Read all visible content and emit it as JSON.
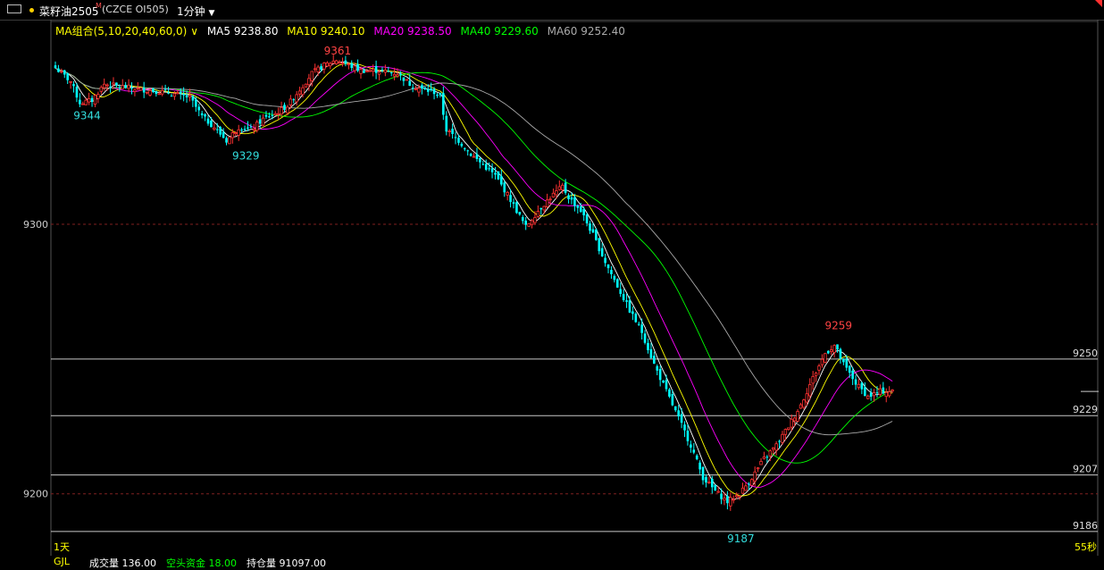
{
  "header": {
    "symbol_name": "菜籽油2505",
    "symbol_mark": "M",
    "exchange_code": "(CZCE OI505)",
    "period": "1分钟"
  },
  "legend": {
    "group": "MA组合(5,10,20,40,60,0)",
    "items": [
      {
        "label": "MA5 9238.80",
        "color": "#ffffff"
      },
      {
        "label": "MA10 9240.10",
        "color": "#ffff00"
      },
      {
        "label": "MA20 9238.50",
        "color": "#ff00ff"
      },
      {
        "label": "MA40 9229.60",
        "color": "#00ff00"
      },
      {
        "label": "MA60 9252.40",
        "color": "#aaaaaa"
      }
    ]
  },
  "footer": {
    "period_tag": "1天",
    "seconds": "55秒",
    "volume_partial": "成交量 136.00",
    "flow_partial": "空头资金 18.00",
    "open_interest_partial": "持仓量 91097.00",
    "sub_tag": "GJL"
  },
  "chart_data": {
    "type": "candlestick",
    "y_axis_labels": [
      "9300",
      "9200"
    ],
    "y_range": [
      9181,
      9364
    ],
    "right_price_labels": [
      "9250",
      "9229",
      "9207",
      "9186"
    ],
    "annotations": [
      {
        "text": "9361",
        "color": "#ff4444"
      },
      {
        "text": "9344",
        "color": "#33dddd"
      },
      {
        "text": "9329",
        "color": "#33dddd"
      },
      {
        "text": "9259",
        "color": "#ff4444"
      },
      {
        "text": "9187",
        "color": "#33dddd"
      }
    ],
    "colors": {
      "up": "#ff3232",
      "down": "#00ffff",
      "ma5": "#ffffff",
      "ma10": "#ffff00",
      "ma20": "#ff00ff",
      "ma40": "#00ff00",
      "ma60": "#aaaaaa"
    },
    "path": [
      [
        0,
        9358
      ],
      [
        5,
        9353
      ],
      [
        8,
        9345
      ],
      [
        12,
        9346
      ],
      [
        16,
        9352
      ],
      [
        22,
        9351
      ],
      [
        28,
        9350
      ],
      [
        36,
        9349
      ],
      [
        44,
        9347
      ],
      [
        48,
        9340
      ],
      [
        52,
        9336
      ],
      [
        56,
        9331
      ],
      [
        60,
        9336
      ],
      [
        64,
        9335
      ],
      [
        68,
        9339
      ],
      [
        72,
        9341
      ],
      [
        76,
        9344
      ],
      [
        80,
        9350
      ],
      [
        84,
        9356
      ],
      [
        88,
        9359
      ],
      [
        92,
        9361
      ],
      [
        96,
        9359
      ],
      [
        100,
        9357
      ],
      [
        106,
        9357
      ],
      [
        112,
        9356
      ],
      [
        116,
        9352
      ],
      [
        120,
        9350
      ],
      [
        124,
        9349
      ],
      [
        126,
        9347
      ],
      [
        128,
        9335
      ],
      [
        132,
        9331
      ],
      [
        136,
        9326
      ],
      [
        140,
        9322
      ],
      [
        144,
        9318
      ],
      [
        148,
        9311
      ],
      [
        152,
        9303
      ],
      [
        154,
        9299
      ],
      [
        158,
        9305
      ],
      [
        162,
        9310
      ],
      [
        166,
        9314
      ],
      [
        168,
        9310
      ],
      [
        172,
        9305
      ],
      [
        176,
        9296
      ],
      [
        180,
        9286
      ],
      [
        184,
        9277
      ],
      [
        188,
        9268
      ],
      [
        192,
        9260
      ],
      [
        196,
        9248
      ],
      [
        200,
        9238
      ],
      [
        204,
        9228
      ],
      [
        208,
        9218
      ],
      [
        212,
        9206
      ],
      [
        216,
        9201
      ],
      [
        220,
        9197
      ],
      [
        224,
        9200
      ],
      [
        228,
        9206
      ],
      [
        232,
        9213
      ],
      [
        236,
        9218
      ],
      [
        240,
        9225
      ],
      [
        244,
        9233
      ],
      [
        248,
        9243
      ],
      [
        252,
        9252
      ],
      [
        255,
        9255
      ],
      [
        258,
        9248
      ],
      [
        262,
        9241
      ],
      [
        266,
        9236
      ],
      [
        270,
        9238
      ],
      [
        274,
        9238
      ]
    ]
  }
}
